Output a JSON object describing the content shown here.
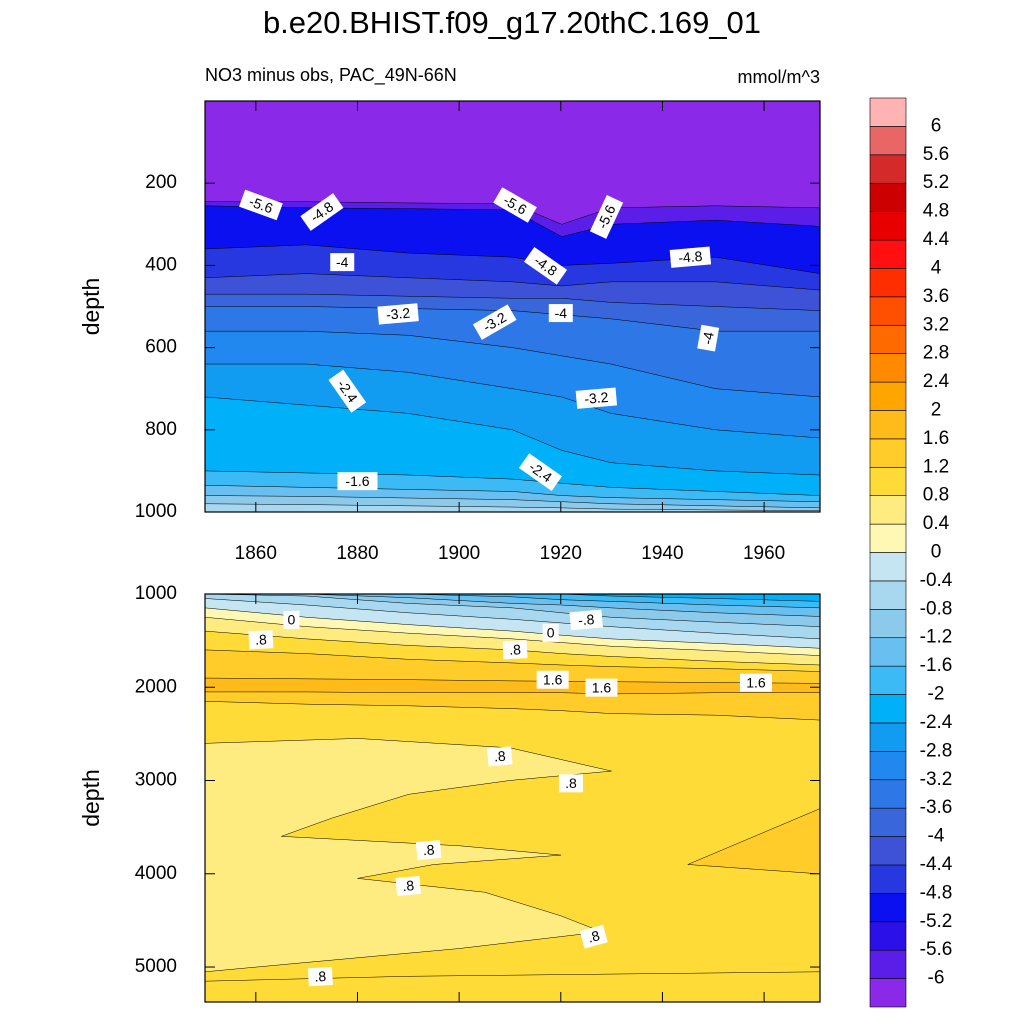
{
  "chart_data": {
    "type": "contour",
    "title": "b.e20.BHIST.f09_g17.20thC.169_01",
    "subtitle": "NO3 minus obs, PAC_49N-66N",
    "units": "mmol/m^3",
    "xlim": [
      1850,
      1971
    ],
    "xticks": [
      1860,
      1880,
      1900,
      1920,
      1940,
      1960
    ],
    "panels": [
      {
        "ylabel": "depth",
        "ylim": [
          0,
          1000
        ],
        "invert_y": true,
        "yticks": [
          200,
          400,
          600,
          800,
          1000
        ],
        "contour_labels": [
          {
            "label": "-5.6",
            "x": 1861,
            "y": 253
          },
          {
            "label": "-4.8",
            "x": 1873,
            "y": 270
          },
          {
            "label": "-4",
            "x": 1877,
            "y": 392
          },
          {
            "label": "-3.2",
            "x": 1888,
            "y": 518
          },
          {
            "label": "-2.4",
            "x": 1878,
            "y": 706
          },
          {
            "label": "-1.6",
            "x": 1880,
            "y": 925
          },
          {
            "label": "-5.6",
            "x": 1911,
            "y": 253
          },
          {
            "label": "-4.8",
            "x": 1917,
            "y": 401
          },
          {
            "label": "-3.2",
            "x": 1907,
            "y": 538
          },
          {
            "label": "-4",
            "x": 1920,
            "y": 516
          },
          {
            "label": "-5.6",
            "x": 1929,
            "y": 282
          },
          {
            "label": "-4.8",
            "x": 1945.5,
            "y": 380
          },
          {
            "label": "-4",
            "x": 1949,
            "y": 577
          },
          {
            "label": "-3.2",
            "x": 1927,
            "y": 723
          },
          {
            "label": "-2.4",
            "x": 1916,
            "y": 903
          }
        ]
      },
      {
        "ylabel": "depth",
        "ylim": [
          1000,
          5375
        ],
        "invert_y": true,
        "yticks": [
          1000,
          2000,
          3000,
          4000,
          5000
        ],
        "contour_labels": [
          {
            "label": "0",
            "x": 1867,
            "y": 1278
          },
          {
            "label": "-.8",
            "x": 1925,
            "y": 1278
          },
          {
            "label": "0",
            "x": 1918,
            "y": 1417
          },
          {
            "label": ".8",
            "x": 1861,
            "y": 1491
          },
          {
            "label": ".8",
            "x": 1911,
            "y": 1598
          },
          {
            "label": "1.6",
            "x": 1918.4,
            "y": 1919
          },
          {
            "label": "1.6",
            "x": 1928,
            "y": 2004
          },
          {
            "label": "1.6",
            "x": 1958.4,
            "y": 1951
          },
          {
            "label": ".8",
            "x": 1908,
            "y": 2741
          },
          {
            "label": ".8",
            "x": 1922,
            "y": 3030
          },
          {
            "label": ".8",
            "x": 1894,
            "y": 3746
          },
          {
            "label": ".8",
            "x": 1890,
            "y": 4130
          },
          {
            "label": ".8",
            "x": 1926.5,
            "y": 4675
          },
          {
            "label": ".8",
            "x": 1872.7,
            "y": 5103
          }
        ]
      }
    ],
    "colorbar": {
      "levels": [
        -6,
        -5.6,
        -5.2,
        -4.8,
        -4.4,
        -4,
        -3.6,
        -3.2,
        -2.8,
        -2.4,
        -2,
        -1.6,
        -1.2,
        -0.8,
        -0.4,
        0,
        0.4,
        0.8,
        1.2,
        1.6,
        2,
        2.4,
        2.8,
        3.2,
        3.6,
        4,
        4.4,
        4.8,
        5.2,
        5.6,
        6
      ],
      "colors": [
        "#8a2ae8",
        "#5a1ee8",
        "#2c10e8",
        "#0a10f0",
        "#2838e0",
        "#3d52d6",
        "#3a66dc",
        "#2d78e6",
        "#2088ee",
        "#119cf2",
        "#00b0f8",
        "#3cbaf5",
        "#68bff0",
        "#8ccaec",
        "#a8d8f0",
        "#c5e5f3",
        "#fff8b5",
        "#ffec80",
        "#ffdb38",
        "#ffcc29",
        "#ffbb1a",
        "#ffa500",
        "#ff8a00",
        "#ff6a00",
        "#ff4f00",
        "#ff2e00",
        "#ff0f0f",
        "#e80000",
        "#cc0000",
        "#d42a2a",
        "#e86666",
        "#ffb3b3"
      ]
    }
  }
}
